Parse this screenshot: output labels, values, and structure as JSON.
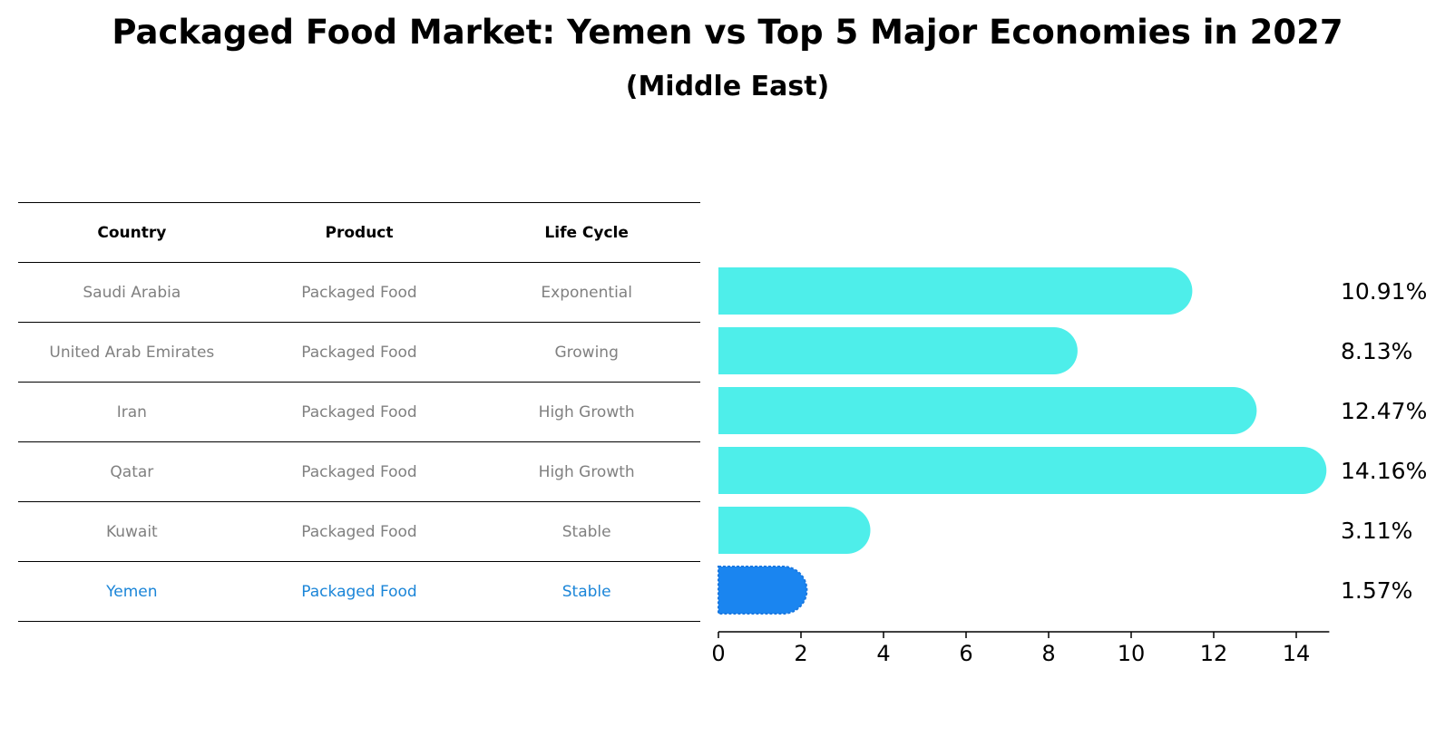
{
  "title": "Packaged Food Market: Yemen vs Top 5 Major Economies in 2027",
  "subtitle": "(Middle East)",
  "table": {
    "headers": [
      "Country",
      "Product",
      "Life Cycle"
    ],
    "rows": [
      {
        "country": "Saudi Arabia",
        "product": "Packaged Food",
        "life_cycle": "Exponential"
      },
      {
        "country": "United Arab Emirates",
        "product": "Packaged Food",
        "life_cycle": "Growing"
      },
      {
        "country": "Iran",
        "product": "Packaged Food",
        "life_cycle": "High Growth"
      },
      {
        "country": "Qatar",
        "product": "Packaged Food",
        "life_cycle": "High Growth"
      },
      {
        "country": "Kuwait",
        "product": "Packaged Food",
        "life_cycle": "Stable"
      },
      {
        "country": "Yemen",
        "product": "Packaged Food",
        "life_cycle": "Stable"
      }
    ]
  },
  "colors": {
    "bar": "#4eeeea",
    "highlight_bar": "#1a85f0",
    "highlight_text": "#1a85d8",
    "row_text": "#808080"
  },
  "chart_data": {
    "type": "bar",
    "orientation": "horizontal",
    "categories": [
      "Saudi Arabia",
      "United Arab Emirates",
      "Iran",
      "Qatar",
      "Kuwait",
      "Yemen"
    ],
    "values": [
      10.91,
      8.13,
      12.47,
      14.16,
      3.11,
      1.57
    ],
    "value_labels": [
      "10.91%",
      "8.13%",
      "12.47%",
      "14.16%",
      "3.11%",
      "1.57%"
    ],
    "highlight": "Yemen",
    "xlim": [
      0,
      14.16
    ],
    "xticks": [
      0,
      2,
      4,
      6,
      8,
      10,
      12,
      14
    ],
    "grid": false
  }
}
